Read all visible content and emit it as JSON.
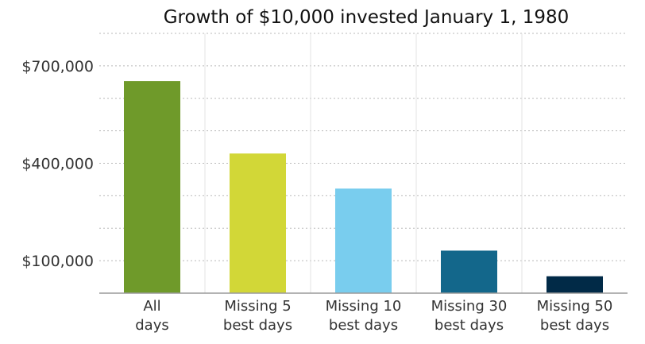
{
  "chart_data": {
    "type": "bar",
    "title": "Growth of $10,000 invested January 1, 1980",
    "xlabel": "",
    "ylabel": "",
    "categories": [
      [
        "All",
        "days"
      ],
      [
        "Missing 5",
        "best days"
      ],
      [
        "Missing 10",
        "best days"
      ],
      [
        "Missing 30",
        "best days"
      ],
      [
        "Missing 50",
        "best days"
      ]
    ],
    "values": [
      653000,
      430000,
      322000,
      131000,
      52000
    ],
    "colors": [
      "#6f9a2a",
      "#d2d737",
      "#79cdee",
      "#13678b",
      "#012a47"
    ],
    "ylim": [
      0,
      800000
    ],
    "yticks": [
      {
        "value": 100000,
        "label": "$100,000"
      },
      {
        "value": 400000,
        "label": "$400,000"
      },
      {
        "value": 700000,
        "label": "$700,000"
      }
    ],
    "gridlines": [
      100000,
      200000,
      300000,
      400000,
      500000,
      600000,
      700000,
      800000
    ],
    "grid": true,
    "legend": "none"
  }
}
